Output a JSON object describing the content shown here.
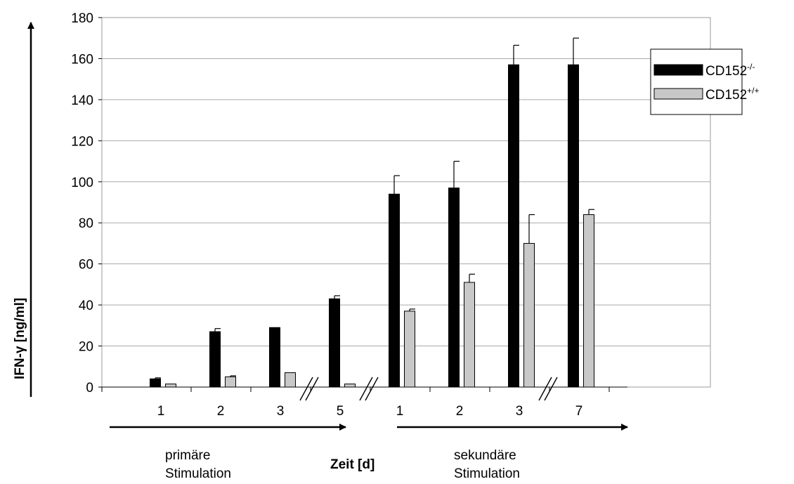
{
  "chart_data": {
    "type": "bar",
    "title": "",
    "ylabel": "IFN-γ [ng/ml]",
    "xlabel": "Zeit [d]",
    "ylim": [
      0,
      180
    ],
    "yticks": [
      0,
      20,
      40,
      60,
      80,
      100,
      120,
      140,
      160,
      180
    ],
    "grid": true,
    "legend_position": "right",
    "categories": [
      "1",
      "2",
      "3",
      "5",
      "1",
      "2",
      "3",
      "7"
    ],
    "series": [
      {
        "name": "CD152-/-",
        "name_base": "CD152",
        "name_sup": "-/-",
        "color": "#000000",
        "values": [
          4,
          27,
          29,
          43,
          94,
          97,
          157,
          157
        ],
        "errors": [
          0.5,
          1.5,
          0,
          1.5,
          9,
          13,
          9.5,
          13
        ]
      },
      {
        "name": "CD152+/+",
        "name_base": "CD152",
        "name_sup": "+/+",
        "color": "#c8c8c8",
        "values": [
          1.5,
          5,
          7,
          1.5,
          37,
          51,
          70,
          84
        ],
        "errors": [
          0,
          0.5,
          0,
          0,
          1,
          4,
          14,
          2.5
        ]
      }
    ],
    "axis_breaks": [
      "between 3 and 5",
      "between 5 and 1",
      "between 3 and 7"
    ],
    "phases": [
      {
        "line1": "primäre",
        "line2": "Stimulation"
      },
      {
        "line1": "sekundäre",
        "line2": "Stimulation"
      }
    ]
  }
}
